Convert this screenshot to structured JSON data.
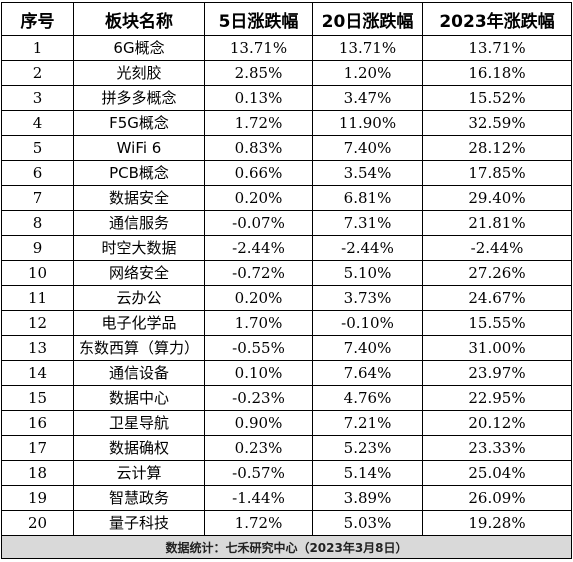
{
  "table": {
    "headers": [
      "序号",
      "板块名称",
      "5日涨跌幅",
      "20日涨跌幅",
      "2023年涨跌幅"
    ],
    "rows": [
      [
        "1",
        "6G概念",
        "13.71%",
        "13.71%",
        "13.71%"
      ],
      [
        "2",
        "光刻胶",
        "2.85%",
        "1.20%",
        "16.18%"
      ],
      [
        "3",
        "拼多多概念",
        "0.13%",
        "3.47%",
        "15.52%"
      ],
      [
        "4",
        "F5G概念",
        "1.72%",
        "11.90%",
        "32.59%"
      ],
      [
        "5",
        "WiFi 6",
        "0.83%",
        "7.40%",
        "28.12%"
      ],
      [
        "6",
        "PCB概念",
        "0.66%",
        "3.54%",
        "17.85%"
      ],
      [
        "7",
        "数据安全",
        "0.20%",
        "6.81%",
        "29.40%"
      ],
      [
        "8",
        "通信服务",
        "-0.07%",
        "7.31%",
        "21.81%"
      ],
      [
        "9",
        "时空大数据",
        "-2.44%",
        "-2.44%",
        "-2.44%"
      ],
      [
        "10",
        "网络安全",
        "-0.72%",
        "5.10%",
        "27.26%"
      ],
      [
        "11",
        "云办公",
        "0.20%",
        "3.73%",
        "24.67%"
      ],
      [
        "12",
        "电子化学品",
        "1.70%",
        "-0.10%",
        "15.55%"
      ],
      [
        "13",
        "东数西算（算力）",
        "-0.55%",
        "7.40%",
        "31.00%"
      ],
      [
        "14",
        "通信设备",
        "0.10%",
        "7.64%",
        "23.97%"
      ],
      [
        "15",
        "数据中心",
        "-0.23%",
        "4.76%",
        "22.95%"
      ],
      [
        "16",
        "卫星导航",
        "0.90%",
        "7.21%",
        "20.12%"
      ],
      [
        "17",
        "数据确权",
        "0.23%",
        "5.23%",
        "23.33%"
      ],
      [
        "18",
        "云计算",
        "-0.57%",
        "5.14%",
        "25.04%"
      ],
      [
        "19",
        "智慧政务",
        "-1.44%",
        "3.89%",
        "26.09%"
      ],
      [
        "20",
        "量子科技",
        "1.72%",
        "5.03%",
        "19.28%"
      ]
    ],
    "footer": "数据统计：七禾研究中心（2023年3月8日）"
  }
}
